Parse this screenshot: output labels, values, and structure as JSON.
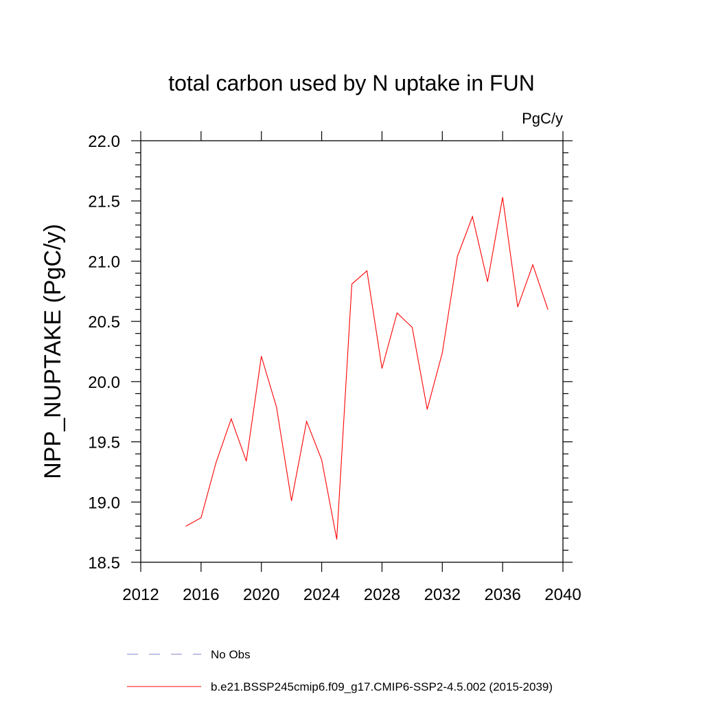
{
  "chart_data": {
    "type": "line",
    "title": "total carbon used by N uptake in FUN",
    "units_label": "PgC/y",
    "xlabel": "",
    "ylabel": "NPP_NUPTAKE  (PgC/y)",
    "xlim": [
      2012,
      2040
    ],
    "ylim": [
      18.5,
      22.0
    ],
    "xticks": [
      2012,
      2016,
      2020,
      2024,
      2028,
      2032,
      2036,
      2040
    ],
    "yticks": [
      "18.5",
      "19.0",
      "19.5",
      "20.0",
      "20.5",
      "21.0",
      "21.5",
      "22.0"
    ],
    "series": [
      {
        "name": "b.e21.BSSP245cmip6.f09_g17.CMIP6-SSP2-4.5.002 (2015-2039)",
        "color": "#ff0000",
        "style": "solid",
        "x": [
          2015,
          2016,
          2017,
          2018,
          2019,
          2020,
          2021,
          2022,
          2023,
          2024,
          2025,
          2026,
          2027,
          2028,
          2029,
          2030,
          2031,
          2032,
          2033,
          2034,
          2035,
          2036,
          2037,
          2038,
          2039
        ],
        "y": [
          18.8,
          18.87,
          19.33,
          19.69,
          19.34,
          20.21,
          19.79,
          19.01,
          19.67,
          19.35,
          18.69,
          20.81,
          20.92,
          20.11,
          20.57,
          20.45,
          19.77,
          20.24,
          21.04,
          21.37,
          20.83,
          21.53,
          20.62,
          20.97,
          20.6
        ]
      }
    ],
    "legend": [
      {
        "label": "No Obs",
        "color": "#8080cc",
        "style": "dashed"
      },
      {
        "label": "b.e21.BSSP245cmip6.f09_g17.CMIP6-SSP2-4.5.002 (2015-2039)",
        "color": "#ff0000",
        "style": "solid"
      }
    ]
  }
}
